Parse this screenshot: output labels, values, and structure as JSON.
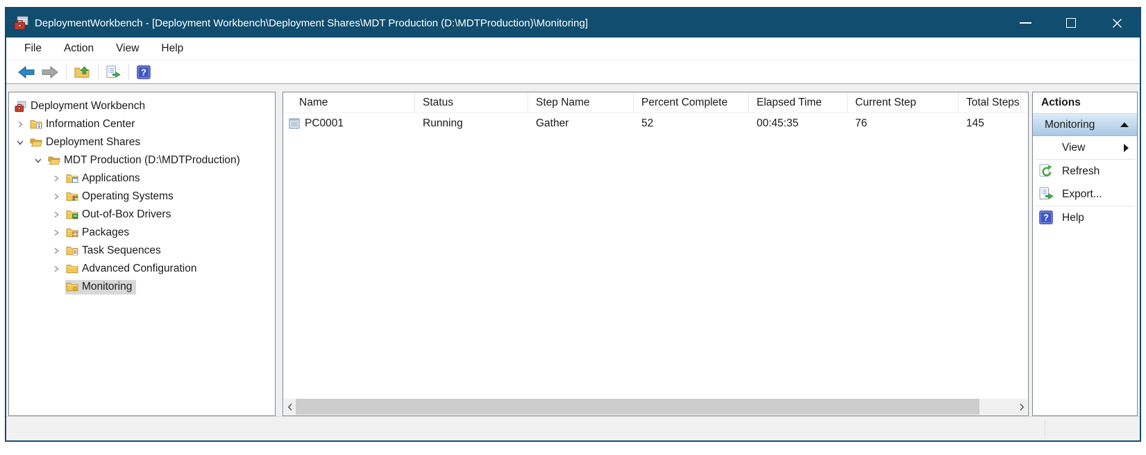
{
  "window": {
    "title": "DeploymentWorkbench - [Deployment Workbench\\Deployment Shares\\MDT Production (D:\\MDTProduction)\\Monitoring]"
  },
  "menu_bar": {
    "items": [
      "File",
      "Action",
      "View",
      "Help"
    ]
  },
  "toolbar": {
    "groups": [
      [
        {
          "icon": "back-arrow"
        },
        {
          "icon": "forward-arrow"
        }
      ],
      [
        {
          "icon": "up-one-level"
        }
      ],
      [
        {
          "icon": "export-list"
        }
      ],
      [
        {
          "icon": "help"
        }
      ]
    ]
  },
  "tree": {
    "items": [
      {
        "label": "Deployment Workbench",
        "level": 0,
        "icon": "workbench",
        "expander": "none",
        "selected": false
      },
      {
        "label": "Information Center",
        "level": 1,
        "icon": "folder-info",
        "expander": "collapsed",
        "selected": false
      },
      {
        "label": "Deployment Shares",
        "level": 1,
        "icon": "folder-open",
        "expander": "expanded",
        "selected": false
      },
      {
        "label": "MDT Production (D:\\MDTProduction)",
        "level": 2,
        "icon": "folder-open",
        "expander": "expanded",
        "selected": false
      },
      {
        "label": "Applications",
        "level": 3,
        "icon": "folder-app",
        "expander": "collapsed",
        "selected": false
      },
      {
        "label": "Operating Systems",
        "level": 3,
        "icon": "folder-os",
        "expander": "collapsed",
        "selected": false
      },
      {
        "label": "Out-of-Box Drivers",
        "level": 3,
        "icon": "folder-driver",
        "expander": "collapsed",
        "selected": false
      },
      {
        "label": "Packages",
        "level": 3,
        "icon": "folder-package",
        "expander": "collapsed",
        "selected": false
      },
      {
        "label": "Task Sequences",
        "level": 3,
        "icon": "folder-task",
        "expander": "collapsed",
        "selected": false
      },
      {
        "label": "Advanced Configuration",
        "level": 3,
        "icon": "folder-plain",
        "expander": "collapsed",
        "selected": false
      },
      {
        "label": "Monitoring",
        "level": 3,
        "icon": "folder-monitor",
        "expander": "none",
        "selected": true
      }
    ]
  },
  "list_view": {
    "columns": [
      {
        "key": "name",
        "label": "Name"
      },
      {
        "key": "status",
        "label": "Status"
      },
      {
        "key": "step_name",
        "label": "Step Name"
      },
      {
        "key": "percent_complete",
        "label": "Percent Complete"
      },
      {
        "key": "elapsed_time",
        "label": "Elapsed Time"
      },
      {
        "key": "current_step",
        "label": "Current Step"
      },
      {
        "key": "total_steps",
        "label": "Total Steps"
      }
    ],
    "rows": [
      {
        "icon": "computer",
        "name": "PC0001",
        "status": "Running",
        "step_name": "Gather",
        "percent_complete": "52",
        "elapsed_time": "00:45:35",
        "current_step": "76",
        "total_steps": "145"
      }
    ]
  },
  "actions_pane": {
    "title": "Actions",
    "sections": [
      {
        "label": "Monitoring",
        "collapsed": false,
        "items": [
          {
            "label": "View",
            "icon": null,
            "has_submenu": true
          },
          {
            "label": "Refresh",
            "icon": "refresh",
            "has_submenu": false
          },
          {
            "label": "Export...",
            "icon": "export-list",
            "has_submenu": false
          },
          {
            "label": "Help",
            "icon": "help",
            "has_submenu": false
          }
        ]
      }
    ]
  },
  "colors": {
    "titlebar": "#104d6e",
    "tree_selection": "#d8d8d8",
    "section_header_top": "#dcebf7",
    "section_header_bottom": "#a9c8e3",
    "pane_border": "#828790"
  }
}
